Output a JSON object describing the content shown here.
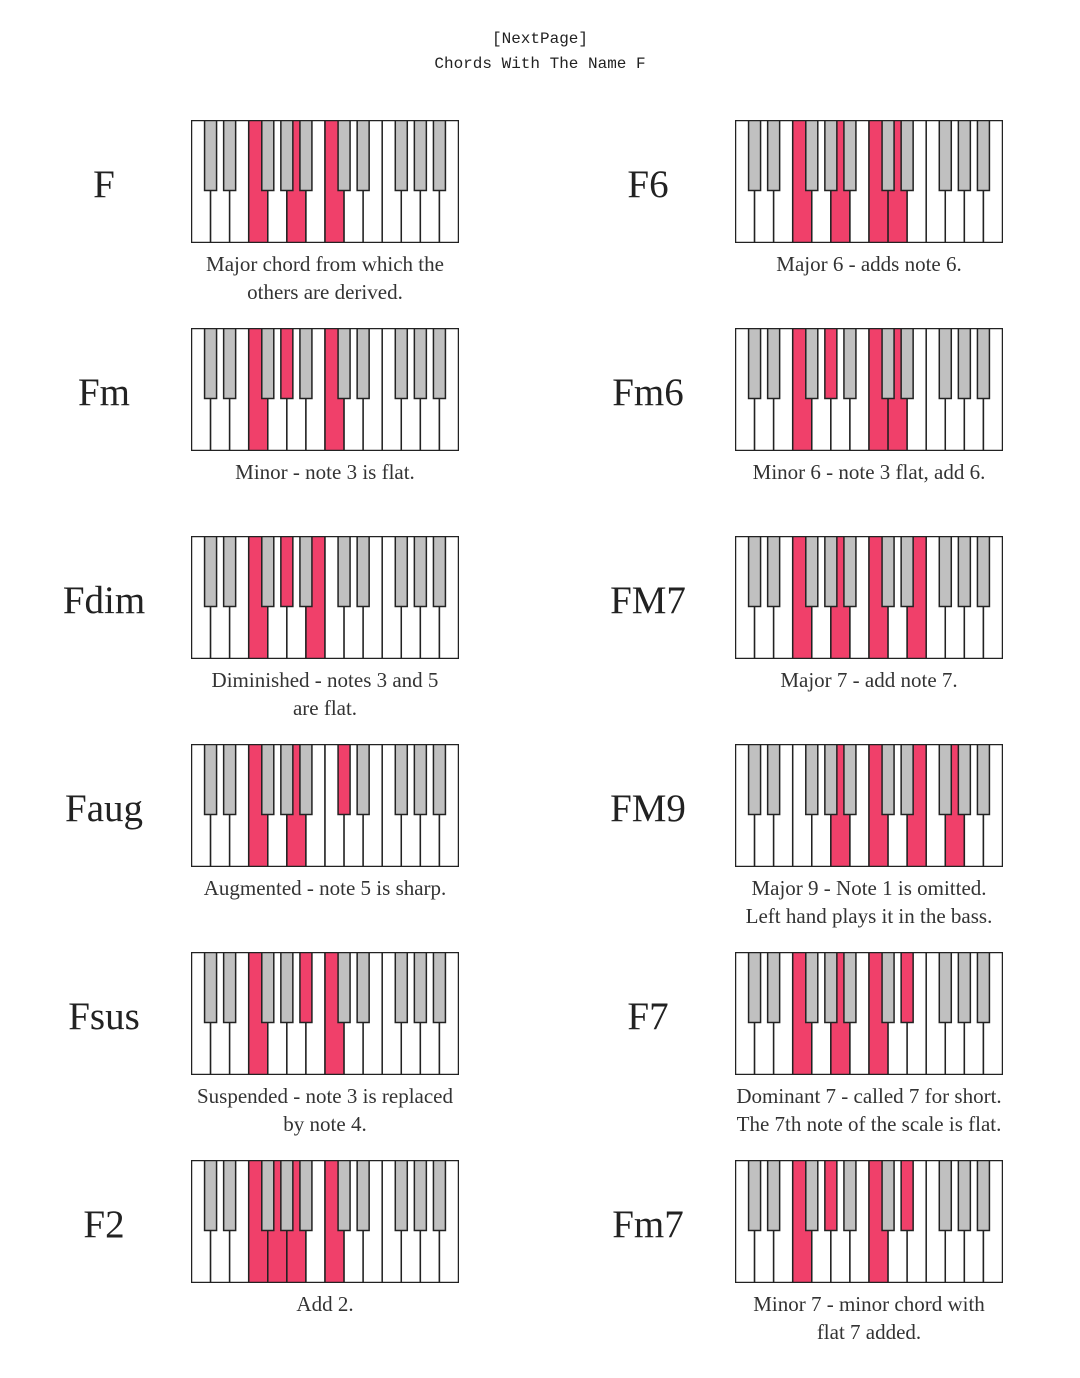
{
  "header": {
    "link": "[NextPage]",
    "title": "Chords With The Name F"
  },
  "colors": {
    "highlight": "#f0406a",
    "black_key": "#c0c0c0",
    "white_key": "#ffffff",
    "outline": "#222222"
  },
  "keyboard": {
    "octaves": 2,
    "start_note": "C"
  },
  "chords": [
    {
      "name": "F",
      "caption": [
        "Major chord from which the",
        "others are derived."
      ],
      "notes": [
        5,
        9,
        12
      ]
    },
    {
      "name": "F6",
      "caption": [
        "Major 6 - adds note 6."
      ],
      "notes": [
        5,
        9,
        12,
        14
      ]
    },
    {
      "name": "Fm",
      "caption": [
        "Minor - note 3 is flat."
      ],
      "notes": [
        5,
        8,
        12
      ]
    },
    {
      "name": "Fm6",
      "caption": [
        "Minor 6 - note 3 flat, add 6."
      ],
      "notes": [
        5,
        8,
        12,
        14
      ]
    },
    {
      "name": "Fdim",
      "caption": [
        "Diminished - notes 3 and 5",
        "are flat."
      ],
      "notes": [
        5,
        8,
        11
      ]
    },
    {
      "name": "FM7",
      "caption": [
        "Major 7 - add note 7."
      ],
      "notes": [
        5,
        9,
        12,
        16
      ]
    },
    {
      "name": "Faug",
      "caption": [
        "Augmented - note 5 is sharp."
      ],
      "notes": [
        5,
        9,
        13
      ]
    },
    {
      "name": "FM9",
      "caption": [
        "Major 9 - Note 1 is omitted.",
        "Left hand plays it in the bass."
      ],
      "notes": [
        9,
        12,
        16,
        19
      ]
    },
    {
      "name": "Fsus",
      "caption": [
        "Suspended - note 3 is replaced",
        "by note 4."
      ],
      "notes": [
        5,
        10,
        12
      ]
    },
    {
      "name": "F7",
      "caption": [
        "Dominant 7 - called 7 for short.",
        "The 7th note of the scale is flat."
      ],
      "notes": [
        5,
        9,
        12,
        15
      ]
    },
    {
      "name": "F2",
      "caption": [
        "Add 2."
      ],
      "notes": [
        5,
        7,
        9,
        12
      ]
    },
    {
      "name": "Fm7",
      "caption": [
        "Minor 7 - minor chord with",
        "flat 7 added."
      ],
      "notes": [
        5,
        8,
        12,
        15
      ]
    }
  ]
}
